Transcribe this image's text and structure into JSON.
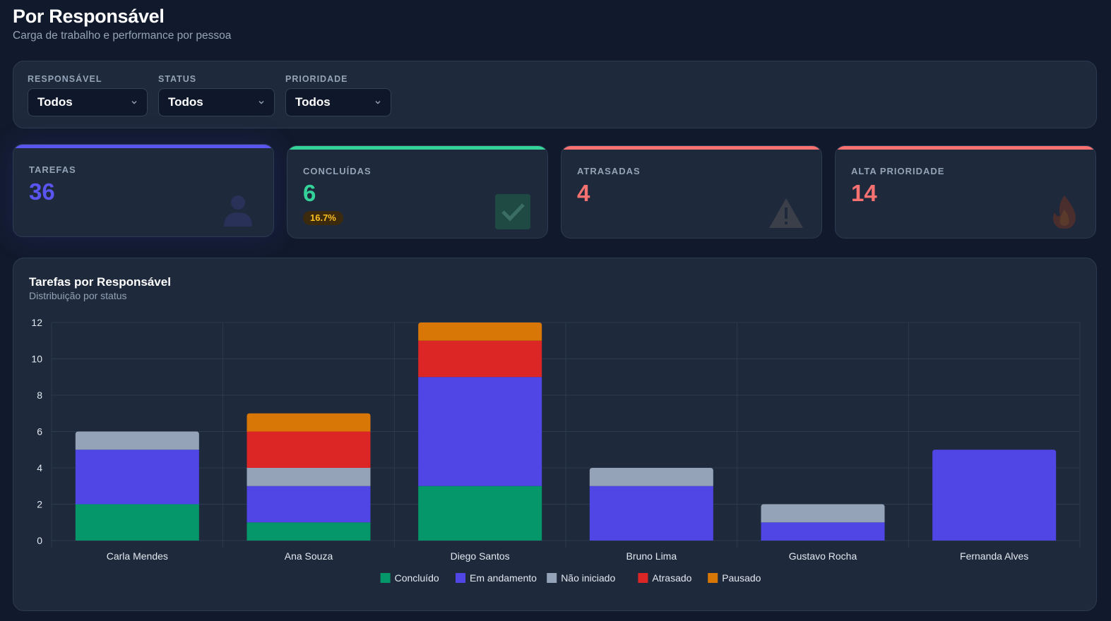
{
  "header": {
    "title": "Por Responsável",
    "subtitle": "Carga de trabalho e performance por pessoa"
  },
  "filters": [
    {
      "label": "RESPONSÁVEL",
      "value": "Todos"
    },
    {
      "label": "STATUS",
      "value": "Todos"
    },
    {
      "label": "PRIORIDADE",
      "value": "Todos"
    }
  ],
  "kpis": [
    {
      "label": "TAREFAS",
      "value": "36",
      "color": "#5b55f0",
      "icon": "person-icon"
    },
    {
      "label": "CONCLUÍDAS",
      "value": "6",
      "badge": "16.7%",
      "color": "#34d399",
      "icon": "check-icon"
    },
    {
      "label": "ATRASADAS",
      "value": "4",
      "color": "#f87171",
      "icon": "warning-icon"
    },
    {
      "label": "ALTA PRIORIDADE",
      "value": "14",
      "color": "#f87171",
      "icon": "fire-icon"
    }
  ],
  "chart_panel": {
    "title": "Tarefas por Responsável",
    "subtitle": "Distribuição por status"
  },
  "chart_data": {
    "type": "bar",
    "stacked": true,
    "categories": [
      "Carla Mendes",
      "Ana Souza",
      "Diego Santos",
      "Bruno Lima",
      "Gustavo Rocha",
      "Fernanda Alves"
    ],
    "series": [
      {
        "name": "Concluído",
        "color": "#059669",
        "values": [
          2,
          1,
          3,
          0,
          0,
          0
        ]
      },
      {
        "name": "Em andamento",
        "color": "#4f46e5",
        "values": [
          3,
          2,
          6,
          3,
          1,
          5
        ]
      },
      {
        "name": "Não iniciado",
        "color": "#94a3b8",
        "values": [
          1,
          1,
          0,
          1,
          1,
          0
        ]
      },
      {
        "name": "Atrasado",
        "color": "#dc2626",
        "values": [
          0,
          2,
          2,
          0,
          0,
          0
        ]
      },
      {
        "name": "Pausado",
        "color": "#d97706",
        "values": [
          0,
          1,
          1,
          0,
          0,
          0
        ]
      }
    ],
    "ylim": [
      0,
      12
    ],
    "yticks": [
      "0",
      "2",
      "4",
      "6",
      "8",
      "10",
      "12"
    ],
    "grid": true,
    "legend": "bottom"
  }
}
